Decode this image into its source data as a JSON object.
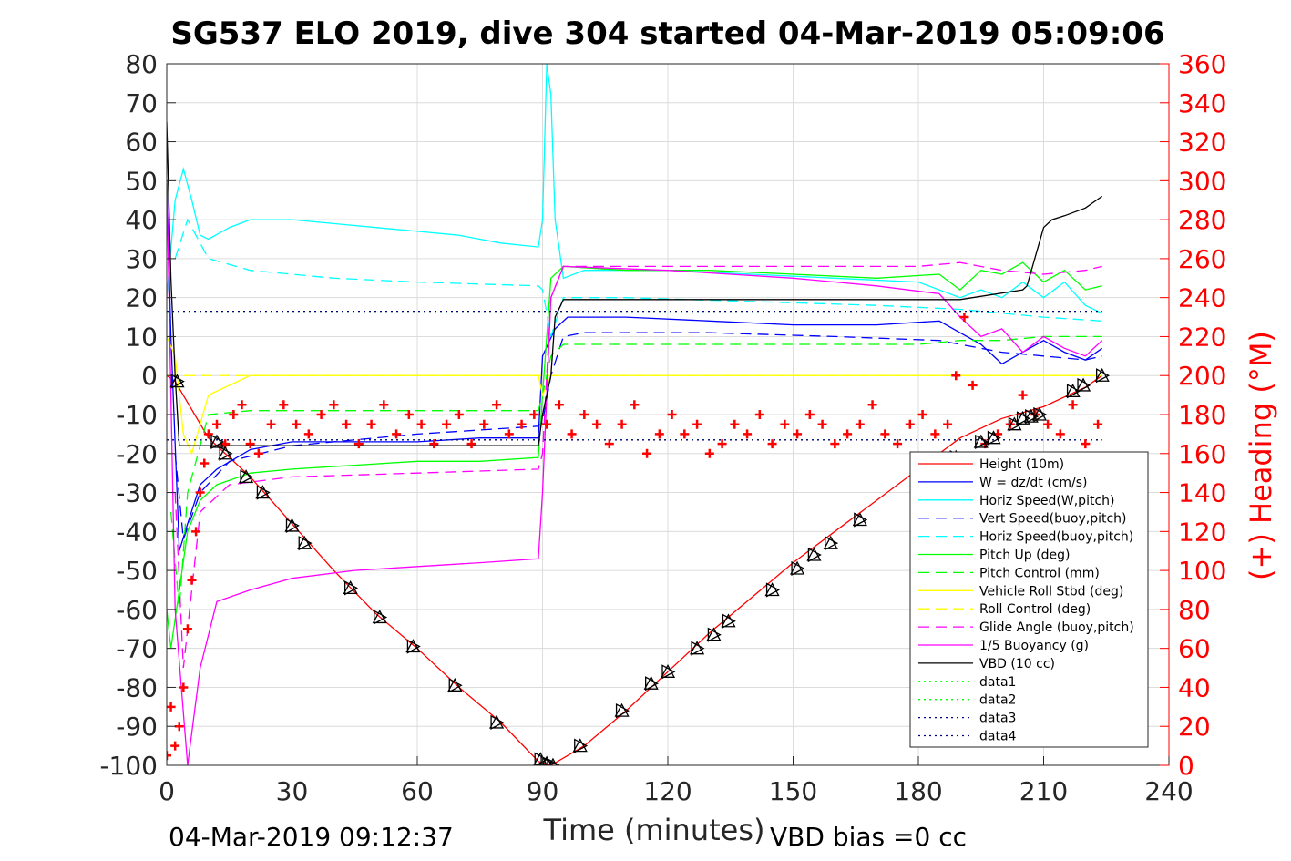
{
  "title": "SG537 ELO 2019, dive 304 started 04-Mar-2019 05:09:06",
  "footer": {
    "end_time": "04-Mar-2019 09:12:37",
    "vbd_bias": "VBD bias =0 cc"
  },
  "chart_data": {
    "type": "line",
    "xlabel": "Time (minutes)",
    "ylabel": "",
    "ylabel_right": "(+) Heading (°M)",
    "xlim": [
      0,
      240
    ],
    "ylim": [
      -100,
      80
    ],
    "ylim_right": [
      0,
      360
    ],
    "xticks": [
      0,
      30,
      60,
      90,
      120,
      150,
      180,
      210,
      240
    ],
    "yticks": [
      -100,
      -90,
      -80,
      -70,
      -60,
      -50,
      -40,
      -30,
      -20,
      -10,
      0,
      10,
      20,
      30,
      40,
      50,
      60,
      70,
      80
    ],
    "yticks_right": [
      0,
      20,
      40,
      60,
      80,
      100,
      120,
      140,
      160,
      180,
      200,
      220,
      240,
      260,
      280,
      300,
      320,
      340,
      360
    ],
    "grid": true,
    "legend_position": "bottom-right",
    "series": [
      {
        "name": "Height (10m)",
        "color": "#ff0000",
        "style": "solid",
        "x": [
          0,
          2,
          10,
          20,
          30,
          40,
          50,
          60,
          70,
          80,
          89,
          92,
          100,
          110,
          120,
          130,
          140,
          150,
          160,
          170,
          180,
          190,
          200,
          210,
          220,
          224
        ],
        "y": [
          0,
          -1.5,
          -16,
          -26,
          -38,
          -50,
          -61,
          -70,
          -80,
          -89,
          -99,
          -100,
          -95,
          -86,
          -76,
          -66,
          -57,
          -48,
          -40,
          -32,
          -24,
          -16,
          -11,
          -8,
          -3,
          0
        ]
      },
      {
        "name": "W = dz/dt (cm/s)",
        "color": "#0000ff",
        "style": "solid",
        "x": [
          0,
          1,
          3,
          5,
          8,
          12,
          20,
          30,
          45,
          60,
          75,
          89,
          90,
          93,
          96,
          110,
          130,
          150,
          170,
          185,
          190,
          195,
          200,
          205,
          210,
          215,
          220,
          224
        ],
        "y": [
          50,
          10,
          -45,
          -38,
          -28,
          -24,
          -19,
          -17,
          -17,
          -17,
          -16,
          -16,
          5,
          12,
          15,
          15,
          14,
          13,
          13,
          14,
          11,
          8,
          3,
          6,
          9,
          6,
          4,
          7
        ]
      },
      {
        "name": "Horiz Speed(W,pitch)",
        "color": "#00ffff",
        "style": "solid",
        "x": [
          0,
          2,
          4,
          6,
          8,
          10,
          15,
          20,
          30,
          40,
          50,
          60,
          70,
          80,
          89,
          90,
          91,
          92,
          93,
          95,
          100,
          120,
          140,
          160,
          180,
          185,
          190,
          195,
          200,
          205,
          210,
          215,
          220,
          224
        ],
        "y": [
          20,
          45,
          53,
          45,
          36,
          35,
          38,
          40,
          40,
          39,
          38,
          37,
          36,
          34,
          33,
          40,
          80,
          72,
          40,
          25,
          27,
          27,
          26,
          25,
          24,
          22,
          20,
          22,
          20,
          24,
          20,
          24,
          18,
          16
        ]
      },
      {
        "name": "Vert Speed(buoy,pitch)",
        "color": "#0000ff",
        "style": "dashed",
        "x": [
          2,
          4,
          8,
          15,
          30,
          60,
          89,
          90,
          92,
          95,
          100,
          130,
          160,
          185,
          190,
          200,
          210,
          220,
          224
        ],
        "y": [
          -20,
          -42,
          -30,
          -22,
          -18,
          -15,
          -13,
          -12,
          0,
          10,
          11,
          11,
          10,
          9,
          8,
          6,
          5,
          4,
          5
        ]
      },
      {
        "name": "Horiz Speed(buoy,pitch)",
        "color": "#00ffff",
        "style": "dashed",
        "x": [
          2,
          5,
          10,
          20,
          40,
          60,
          89,
          90,
          92,
          95,
          110,
          140,
          170,
          190,
          200,
          210,
          224
        ],
        "y": [
          30,
          40,
          30,
          27,
          25,
          24,
          23,
          22,
          10,
          20,
          20,
          19,
          18,
          17,
          16,
          15,
          14
        ]
      },
      {
        "name": "Pitch Up (deg)",
        "color": "#00ff00",
        "style": "solid",
        "x": [
          0,
          1,
          3,
          5,
          8,
          12,
          20,
          30,
          45,
          60,
          75,
          89,
          90,
          92,
          95,
          110,
          130,
          150,
          170,
          185,
          190,
          195,
          200,
          205,
          210,
          215,
          220,
          224
        ],
        "y": [
          -60,
          -70,
          -55,
          -40,
          -32,
          -28,
          -25,
          -24,
          -23,
          -22,
          -22,
          -21,
          -5,
          25,
          28,
          27,
          27,
          26,
          25,
          26,
          22,
          27,
          26,
          29,
          24,
          27,
          22,
          23
        ]
      },
      {
        "name": "Pitch Control (mm)",
        "color": "#00ff00",
        "style": "dashed",
        "x": [
          1,
          3,
          5,
          10,
          20,
          40,
          60,
          89,
          90,
          92,
          95,
          120,
          150,
          180,
          190,
          200,
          210,
          220,
          224
        ],
        "y": [
          -35,
          -60,
          -30,
          -10,
          -9,
          -9,
          -9,
          -9,
          -5,
          5,
          8,
          8,
          8,
          8,
          9,
          9,
          10,
          10,
          10
        ]
      },
      {
        "name": "Vehicle Roll Stbd (deg)",
        "color": "#ffff00",
        "style": "solid",
        "x": [
          0,
          2,
          4,
          6,
          10,
          20,
          40,
          60,
          80,
          89,
          90,
          92,
          100,
          120,
          140,
          160,
          180,
          190,
          200,
          210,
          220,
          224
        ],
        "y": [
          10,
          5,
          -15,
          -20,
          -5,
          0,
          0,
          0,
          0,
          0,
          -5,
          0,
          0,
          0,
          0,
          0,
          0,
          0,
          0,
          0,
          0,
          0
        ]
      },
      {
        "name": "Roll Control (deg)",
        "color": "#ffff00",
        "style": "dashed",
        "x": [
          0,
          40,
          89,
          92,
          140,
          190,
          224
        ],
        "y": [
          0,
          0,
          0,
          0,
          0,
          0,
          0
        ]
      },
      {
        "name": "Glide Angle (buoy,pitch)",
        "color": "#ff00ff",
        "style": "dashed",
        "x": [
          2,
          4,
          8,
          15,
          30,
          60,
          89,
          90,
          92,
          95,
          120,
          150,
          180,
          190,
          200,
          210,
          220,
          224
        ],
        "y": [
          -30,
          -75,
          -35,
          -28,
          -26,
          -25,
          -24,
          -20,
          20,
          28,
          28,
          28,
          28,
          29,
          27,
          26,
          27,
          28
        ]
      },
      {
        "name": "1/5 Buoyancy (g)",
        "color": "#ff00ff",
        "style": "solid",
        "x": [
          0,
          2,
          5,
          8,
          12,
          20,
          30,
          45,
          60,
          75,
          89,
          90,
          92,
          95,
          120,
          150,
          170,
          185,
          190,
          195,
          200,
          205,
          210,
          215,
          220,
          224
        ],
        "y": [
          50,
          -60,
          -100,
          -75,
          -58,
          -55,
          -52,
          -50,
          -49,
          -48,
          -47,
          -30,
          20,
          28,
          27,
          25,
          23,
          21,
          15,
          10,
          12,
          6,
          10,
          7,
          5,
          9
        ]
      },
      {
        "name": "VBD (10 cc)",
        "color": "#000000",
        "style": "solid",
        "x": [
          0,
          1,
          2,
          3,
          89,
          90,
          92,
          93,
          95,
          190,
          205,
          206,
          210,
          212,
          215,
          220,
          224
        ],
        "y": [
          65,
          25,
          0,
          -18,
          -18,
          -10,
          0,
          15,
          19.5,
          19.5,
          22,
          23,
          38,
          40,
          41,
          43,
          46
        ]
      },
      {
        "name": "data1",
        "color": "#00ff00",
        "style": "dotted",
        "x": [
          0,
          224
        ],
        "y": [
          16.5,
          16.5
        ]
      },
      {
        "name": "data2",
        "color": "#00ff00",
        "style": "dotted",
        "x": [
          0,
          224
        ],
        "y": [
          -16.5,
          -16.5
        ]
      },
      {
        "name": "data3",
        "color": "#000080",
        "style": "dotted",
        "x": [
          0,
          224
        ],
        "y": [
          16.5,
          16.5
        ]
      },
      {
        "name": "data4",
        "color": "#000080",
        "style": "dotted",
        "x": [
          0,
          224
        ],
        "y": [
          -16.5,
          -16.5
        ]
      }
    ],
    "heading_points": {
      "color": "#ff0000",
      "axis": "right",
      "x": [
        0,
        1,
        2,
        3,
        4,
        5,
        6,
        7,
        8,
        9,
        10,
        12,
        14,
        16,
        18,
        20,
        22,
        25,
        28,
        31,
        34,
        37,
        40,
        43,
        46,
        49,
        52,
        55,
        58,
        61,
        64,
        67,
        70,
        73,
        76,
        79,
        82,
        85,
        88,
        91,
        94,
        97,
        100,
        103,
        106,
        109,
        112,
        115,
        118,
        121,
        124,
        127,
        130,
        133,
        136,
        139,
        142,
        145,
        148,
        151,
        154,
        157,
        160,
        163,
        166,
        169,
        172,
        175,
        178,
        181,
        184,
        187,
        189,
        191,
        193,
        196,
        199,
        202,
        205,
        208,
        211,
        214,
        217,
        220,
        223
      ],
      "y": [
        5,
        30,
        10,
        20,
        40,
        70,
        95,
        120,
        140,
        155,
        170,
        175,
        165,
        180,
        185,
        165,
        160,
        175,
        185,
        175,
        170,
        180,
        185,
        175,
        165,
        175,
        185,
        170,
        180,
        175,
        165,
        175,
        180,
        165,
        175,
        185,
        170,
        175,
        180,
        175,
        185,
        170,
        180,
        175,
        165,
        175,
        185,
        160,
        170,
        180,
        170,
        175,
        160,
        165,
        175,
        170,
        180,
        165,
        175,
        170,
        180,
        175,
        165,
        170,
        175,
        185,
        170,
        165,
        175,
        180,
        170,
        175,
        200,
        230,
        195,
        165,
        170,
        175,
        190,
        180,
        175,
        170,
        185,
        165,
        175
      ]
    },
    "depth_markers": {
      "color": "#000000",
      "x": [
        2.5,
        12,
        14,
        19,
        23,
        30,
        33,
        44,
        51,
        59,
        69,
        79,
        89.5,
        91,
        92.5,
        99,
        109,
        116,
        120,
        127,
        131,
        134.5,
        145,
        151,
        155,
        159,
        166,
        183,
        189,
        195,
        198,
        203,
        205,
        207,
        209,
        217,
        219.5,
        224
      ],
      "y": [
        -1.5,
        -17,
        -20,
        -26,
        -30,
        -38.5,
        -43,
        -54.5,
        -62,
        -69.5,
        -79.5,
        -89,
        -98.5,
        -99.5,
        -100,
        -95,
        -86,
        -79,
        -76,
        -70,
        -66.5,
        -63,
        -55,
        -49.5,
        -46,
        -43,
        -37,
        -26,
        -21,
        -17,
        -16,
        -12.5,
        -11,
        -10.5,
        -10,
        -4,
        -2.5,
        0
      ]
    }
  }
}
